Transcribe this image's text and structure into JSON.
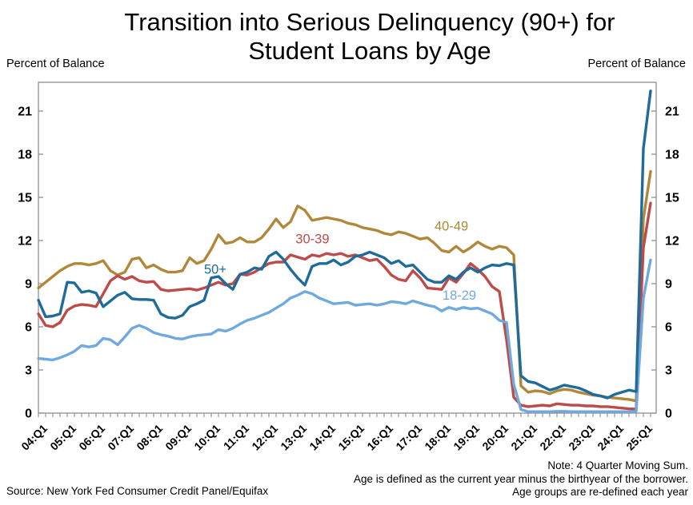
{
  "title": {
    "line1": "Transition into Serious Delinquency (90+) for",
    "line2": "Student Loans by Age"
  },
  "axis_units": {
    "left": "Percent of Balance",
    "right": "Percent of Balance"
  },
  "notes": [
    "Note: 4 Quarter Moving Sum.",
    "Age is defined as the current year minus the birthyear of the borrower.",
    "Age groups are re-defined each year"
  ],
  "source": "Source: New York Fed Consumer Credit Panel/Equifax",
  "colors": {
    "axis": "#8f8f8f",
    "tick_text": "#000000"
  },
  "chart_data": {
    "type": "line",
    "title": "Transition into Serious Delinquency (90+) for Student Loans by Age",
    "ylabel": "Percent of Balance",
    "ylim": [
      0,
      23
    ],
    "yticks": [
      0,
      3,
      6,
      9,
      12,
      15,
      18,
      21
    ],
    "grid": false,
    "frequency": "quarterly",
    "x_start": "2004:Q1",
    "x_end": "2025:Q2",
    "x_tick_labels": [
      "04:Q1",
      "05:Q1",
      "06:Q1",
      "07:Q1",
      "08:Q1",
      "09:Q1",
      "10:Q1",
      "11:Q1",
      "12:Q1",
      "13:Q1",
      "14:Q1",
      "15:Q1",
      "16:Q1",
      "17:Q1",
      "18:Q1",
      "19:Q1",
      "20:Q1",
      "21:Q1",
      "22:Q1",
      "23:Q1",
      "24:Q1",
      "25:Q1"
    ],
    "x_label_every": 4,
    "series": [
      {
        "name": "40-49",
        "color": "#B1883A",
        "annotation": {
          "text": "40-49",
          "xi": 55,
          "v": 12.7
        },
        "values": [
          8.7,
          9.1,
          9.5,
          9.9,
          10.2,
          10.4,
          10.4,
          10.3,
          10.4,
          10.6,
          9.9,
          9.6,
          9.8,
          10.7,
          10.8,
          10.1,
          10.3,
          10.0,
          9.8,
          9.8,
          9.9,
          10.8,
          10.4,
          10.6,
          11.4,
          12.4,
          11.8,
          11.9,
          12.2,
          11.9,
          11.9,
          12.2,
          12.8,
          13.5,
          12.9,
          13.3,
          14.4,
          14.1,
          13.4,
          13.5,
          13.6,
          13.5,
          13.4,
          13.2,
          13.1,
          12.9,
          12.8,
          12.7,
          12.5,
          12.4,
          12.6,
          12.5,
          12.3,
          12.1,
          12.2,
          11.8,
          11.3,
          11.2,
          11.6,
          11.2,
          11.5,
          11.9,
          11.6,
          11.4,
          11.6,
          11.5,
          11.0,
          1.9,
          1.45,
          1.55,
          1.5,
          1.35,
          1.55,
          1.65,
          1.6,
          1.45,
          1.35,
          1.25,
          1.2,
          1.1,
          1.05,
          1.0,
          0.95,
          0.85,
          13.5,
          16.8
        ]
      },
      {
        "name": "30-39",
        "color": "#BE4B48",
        "annotation": {
          "text": "30-39",
          "xi": 35.7,
          "v": 11.8
        },
        "values": [
          6.9,
          6.1,
          6.0,
          6.3,
          7.15,
          7.45,
          7.55,
          7.5,
          7.4,
          8.3,
          9.2,
          9.55,
          9.3,
          9.5,
          9.2,
          9.1,
          9.15,
          8.6,
          8.5,
          8.55,
          8.6,
          8.65,
          8.55,
          8.7,
          8.9,
          9.1,
          8.9,
          9.0,
          9.65,
          9.6,
          9.8,
          10.1,
          10.4,
          10.5,
          10.5,
          11.0,
          10.85,
          10.7,
          11.0,
          10.9,
          11.1,
          11.0,
          11.1,
          10.9,
          11.0,
          10.8,
          10.6,
          10.7,
          10.2,
          9.6,
          9.3,
          9.2,
          9.9,
          9.4,
          8.7,
          8.65,
          8.6,
          9.4,
          9.1,
          9.7,
          10.4,
          10.0,
          9.5,
          8.8,
          8.45,
          5.1,
          1.1,
          0.55,
          0.45,
          0.5,
          0.55,
          0.5,
          0.65,
          0.6,
          0.55,
          0.55,
          0.5,
          0.5,
          0.45,
          0.45,
          0.4,
          0.35,
          0.3,
          0.28,
          11.5,
          14.6
        ]
      },
      {
        "name": "18-29",
        "color": "#70A9DE",
        "annotation": {
          "text": "18-29",
          "xi": 56.1,
          "v": 7.9
        },
        "values": [
          3.8,
          3.75,
          3.7,
          3.85,
          4.05,
          4.3,
          4.7,
          4.6,
          4.7,
          5.2,
          5.1,
          4.75,
          5.3,
          5.9,
          6.1,
          5.9,
          5.6,
          5.45,
          5.35,
          5.2,
          5.15,
          5.3,
          5.4,
          5.45,
          5.5,
          5.8,
          5.7,
          5.9,
          6.2,
          6.45,
          6.6,
          6.8,
          7.0,
          7.3,
          7.6,
          8.0,
          8.2,
          8.45,
          8.3,
          8.0,
          7.8,
          7.6,
          7.65,
          7.7,
          7.5,
          7.55,
          7.6,
          7.5,
          7.6,
          7.75,
          7.7,
          7.6,
          7.8,
          7.65,
          7.5,
          7.4,
          7.1,
          7.35,
          7.2,
          7.35,
          7.25,
          7.3,
          7.1,
          6.9,
          6.45,
          6.3,
          2.0,
          0.25,
          0.1,
          0.1,
          0.1,
          0.1,
          0.12,
          0.12,
          0.1,
          0.1,
          0.1,
          0.1,
          0.1,
          0.1,
          0.1,
          0.1,
          0.1,
          0.12,
          8.0,
          10.65
        ]
      },
      {
        "name": "50+",
        "color": "#1F6B99",
        "annotation": {
          "text": "50+",
          "xi": 23,
          "v": 9.7
        },
        "values": [
          7.85,
          6.7,
          6.75,
          6.9,
          9.1,
          9.05,
          8.4,
          8.5,
          8.35,
          7.4,
          7.8,
          8.2,
          8.4,
          7.95,
          7.9,
          7.9,
          7.85,
          6.9,
          6.65,
          6.6,
          6.8,
          7.4,
          7.6,
          7.85,
          9.4,
          9.5,
          9.0,
          8.6,
          9.65,
          9.8,
          10.1,
          10.0,
          10.9,
          11.2,
          10.7,
          10.0,
          9.4,
          8.9,
          10.2,
          10.4,
          10.4,
          10.65,
          10.3,
          10.5,
          10.9,
          11.0,
          11.2,
          11.0,
          10.8,
          10.4,
          10.6,
          10.2,
          10.3,
          9.8,
          9.3,
          9.1,
          9.1,
          9.55,
          9.3,
          9.8,
          10.1,
          9.8,
          10.1,
          10.3,
          10.25,
          10.4,
          10.3,
          2.6,
          2.2,
          2.1,
          1.85,
          1.6,
          1.75,
          1.95,
          1.85,
          1.75,
          1.55,
          1.3,
          1.2,
          1.05,
          1.3,
          1.45,
          1.6,
          1.5,
          18.4,
          22.4
        ]
      }
    ]
  }
}
